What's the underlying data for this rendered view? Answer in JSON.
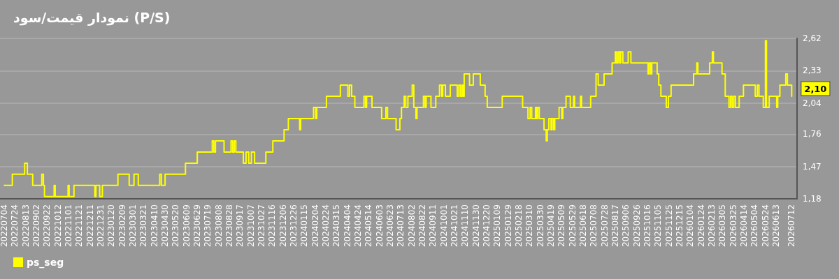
{
  "chart_data": {
    "type": "step",
    "title": "نمودار قیمت/سود (P/S)",
    "x": [
      "2022-07-04",
      "2022-07-19",
      "2022-08-11",
      "2022-08-16",
      "2022-08-26",
      "2022-09-12",
      "2022-09-15",
      "2022-09-17",
      "2022-10-05",
      "2022-10-07",
      "2022-10-31",
      "2022-11-02",
      "2022-11-11",
      "2022-12-20",
      "2022-12-22",
      "2022-12-29",
      "2023-01-03",
      "2023-02-01",
      "2023-02-22",
      "2023-03-03",
      "2023-03-11",
      "2023-04-20",
      "2023-04-23",
      "2023-04-30",
      "2023-06-07",
      "2023-06-29",
      "2023-07-27",
      "2023-07-30",
      "2023-08-02",
      "2023-08-18",
      "2023-08-31",
      "2023-09-03",
      "2023-09-06",
      "2023-09-09",
      "2023-09-23",
      "2023-09-28",
      "2023-10-03",
      "2023-10-08",
      "2023-10-14",
      "2023-11-04",
      "2023-11-17",
      "2023-12-08",
      "2023-12-16",
      "2024-01-06",
      "2024-01-08",
      "2024-02-01",
      "2024-02-05",
      "2024-02-07",
      "2024-02-25",
      "2024-03-22",
      "2024-04-05",
      "2024-04-08",
      "2024-04-12",
      "2024-04-18",
      "2024-05-05",
      "2024-05-08",
      "2024-05-10",
      "2024-05-20",
      "2024-06-07",
      "2024-06-15",
      "2024-06-18",
      "2024-07-04",
      "2024-07-11",
      "2024-07-14",
      "2024-07-19",
      "2024-07-22",
      "2024-07-26",
      "2024-08-03",
      "2024-08-06",
      "2024-08-10",
      "2024-08-12",
      "2024-08-24",
      "2024-08-27",
      "2024-08-29",
      "2024-09-07",
      "2024-09-16",
      "2024-09-23",
      "2024-09-27",
      "2024-09-29",
      "2024-10-04",
      "2024-10-13",
      "2024-10-26",
      "2024-10-29",
      "2024-11-01",
      "2024-11-04",
      "2024-11-06",
      "2024-11-08",
      "2024-11-18",
      "2024-11-25",
      "2024-12-08",
      "2024-12-17",
      "2024-12-21",
      "2025-01-18",
      "2025-02-25",
      "2025-03-07",
      "2025-03-11",
      "2025-03-14",
      "2025-03-21",
      "2025-03-23",
      "2025-03-25",
      "2025-03-28",
      "2025-04-06",
      "2025-04-10",
      "2025-04-12",
      "2025-04-15",
      "2025-04-19",
      "2025-04-21",
      "2025-04-24",
      "2025-04-26",
      "2025-05-04",
      "2025-05-09",
      "2025-05-11",
      "2025-05-17",
      "2025-05-25",
      "2025-05-31",
      "2025-06-02",
      "2025-06-13",
      "2025-06-15",
      "2025-07-02",
      "2025-07-12",
      "2025-07-16",
      "2025-07-27",
      "2025-08-11",
      "2025-08-17",
      "2025-08-19",
      "2025-08-22",
      "2025-08-25",
      "2025-08-27",
      "2025-08-31",
      "2025-09-10",
      "2025-09-15",
      "2025-10-17",
      "2025-10-19",
      "2025-10-22",
      "2025-10-24",
      "2025-11-03",
      "2025-11-06",
      "2025-11-10",
      "2025-11-20",
      "2025-11-24",
      "2025-11-29",
      "2026-01-10",
      "2026-01-16",
      "2026-01-18",
      "2026-02-09",
      "2026-02-14",
      "2026-02-16",
      "2026-03-04",
      "2026-03-10",
      "2026-03-17",
      "2026-03-20",
      "2026-03-23",
      "2026-03-26",
      "2026-03-29",
      "2026-04-05",
      "2026-04-13",
      "2026-05-05",
      "2026-05-09",
      "2026-05-12",
      "2026-05-20",
      "2026-05-24",
      "2026-05-26",
      "2026-05-31",
      "2026-06-14",
      "2026-06-16",
      "2026-06-20",
      "2026-07-01",
      "2026-07-04",
      "2026-07-12"
    ],
    "series": [
      {
        "name": "ps_seg",
        "color": "#ffff00",
        "values": [
          1.3,
          1.4,
          1.5,
          1.4,
          1.3,
          1.4,
          1.3,
          1.2,
          1.3,
          1.2,
          1.3,
          1.2,
          1.3,
          1.2,
          1.3,
          1.2,
          1.3,
          1.4,
          1.3,
          1.4,
          1.3,
          1.4,
          1.3,
          1.4,
          1.5,
          1.6,
          1.7,
          1.6,
          1.7,
          1.6,
          1.7,
          1.6,
          1.7,
          1.6,
          1.5,
          1.6,
          1.5,
          1.6,
          1.5,
          1.6,
          1.7,
          1.8,
          1.9,
          1.8,
          1.9,
          2.0,
          1.9,
          2.0,
          2.1,
          2.2,
          2.1,
          2.2,
          2.1,
          2.0,
          2.1,
          2.0,
          2.1,
          2.0,
          1.9,
          2.0,
          1.9,
          1.8,
          1.9,
          2.0,
          2.1,
          2.0,
          2.1,
          2.2,
          2.0,
          1.9,
          2.0,
          2.1,
          2.0,
          2.1,
          2.0,
          2.1,
          2.2,
          2.1,
          2.2,
          2.1,
          2.2,
          2.1,
          2.2,
          2.1,
          2.2,
          2.1,
          2.3,
          2.2,
          2.3,
          2.2,
          2.1,
          2.0,
          2.1,
          2.0,
          1.9,
          2.0,
          1.9,
          2.0,
          1.9,
          2.0,
          1.9,
          1.8,
          1.7,
          1.8,
          1.9,
          1.8,
          1.9,
          1.8,
          1.9,
          2.0,
          1.9,
          2.0,
          2.1,
          2.0,
          2.1,
          2.0,
          2.1,
          2.0,
          2.1,
          2.3,
          2.2,
          2.3,
          2.4,
          2.5,
          2.4,
          2.5,
          2.4,
          2.5,
          2.4,
          2.5,
          2.4,
          2.3,
          2.4,
          2.3,
          2.4,
          2.3,
          2.2,
          2.1,
          2.0,
          2.1,
          2.2,
          2.3,
          2.4,
          2.3,
          2.4,
          2.5,
          2.4,
          2.3,
          2.1,
          2.0,
          2.1,
          2.0,
          2.1,
          2.0,
          2.1,
          2.2,
          2.1,
          2.2,
          2.1,
          2.0,
          2.6,
          2.0,
          2.1,
          2.0,
          2.1,
          2.2,
          2.3,
          2.2,
          2.1
        ]
      }
    ],
    "annotations": [
      {
        "text": "2,10",
        "x": "2026-07-12",
        "y": 2.1
      }
    ],
    "xlim": [
      "2022-06-26",
      "2026-07-22"
    ],
    "xticks": [
      {
        "value": "2022-07-04",
        "label": "20220704"
      },
      {
        "value": "2022-07-24",
        "label": "20220724"
      },
      {
        "value": "2022-08-13",
        "label": "20220813"
      },
      {
        "value": "2022-09-02",
        "label": "20220902"
      },
      {
        "value": "2022-09-22",
        "label": "20220922"
      },
      {
        "value": "2022-10-12",
        "label": "20221012"
      },
      {
        "value": "2022-11-01",
        "label": "20221101"
      },
      {
        "value": "2022-11-21",
        "label": "20221121"
      },
      {
        "value": "2022-12-11",
        "label": "20221211"
      },
      {
        "value": "2022-12-31",
        "label": "20221231"
      },
      {
        "value": "2023-01-20",
        "label": "20230120"
      },
      {
        "value": "2023-02-09",
        "label": "20230209"
      },
      {
        "value": "2023-03-01",
        "label": "20230301"
      },
      {
        "value": "2023-03-21",
        "label": "20230321"
      },
      {
        "value": "2023-04-10",
        "label": "20230410"
      },
      {
        "value": "2023-04-30",
        "label": "20230430"
      },
      {
        "value": "2023-05-20",
        "label": "20230520"
      },
      {
        "value": "2023-06-09",
        "label": "20230609"
      },
      {
        "value": "2023-06-29",
        "label": "20230629"
      },
      {
        "value": "2023-07-19",
        "label": "20230719"
      },
      {
        "value": "2023-08-08",
        "label": "20230808"
      },
      {
        "value": "2023-08-28",
        "label": "20230828"
      },
      {
        "value": "2023-09-17",
        "label": "20230917"
      },
      {
        "value": "2023-10-07",
        "label": "20231007"
      },
      {
        "value": "2023-10-27",
        "label": "20231027"
      },
      {
        "value": "2023-11-16",
        "label": "20231116"
      },
      {
        "value": "2023-12-06",
        "label": "20231206"
      },
      {
        "value": "2023-12-26",
        "label": "20231226"
      },
      {
        "value": "2024-01-15",
        "label": "20240115"
      },
      {
        "value": "2024-02-04",
        "label": "20240204"
      },
      {
        "value": "2024-02-24",
        "label": "20240224"
      },
      {
        "value": "2024-03-15",
        "label": "20240315"
      },
      {
        "value": "2024-04-04",
        "label": "20240404"
      },
      {
        "value": "2024-04-24",
        "label": "20240424"
      },
      {
        "value": "2024-05-14",
        "label": "20240514"
      },
      {
        "value": "2024-06-03",
        "label": "20240603"
      },
      {
        "value": "2024-06-23",
        "label": "20240623"
      },
      {
        "value": "2024-07-13",
        "label": "20240713"
      },
      {
        "value": "2024-08-02",
        "label": "20240802"
      },
      {
        "value": "2024-08-22",
        "label": "20240822"
      },
      {
        "value": "2024-09-11",
        "label": "20240911"
      },
      {
        "value": "2024-10-01",
        "label": "20241001"
      },
      {
        "value": "2024-10-21",
        "label": "20241021"
      },
      {
        "value": "2024-11-10",
        "label": "20241110"
      },
      {
        "value": "2024-11-30",
        "label": "20241130"
      },
      {
        "value": "2024-12-20",
        "label": "20241220"
      },
      {
        "value": "2025-01-09",
        "label": "20250109"
      },
      {
        "value": "2025-01-29",
        "label": "20250129"
      },
      {
        "value": "2025-02-18",
        "label": "20250218"
      },
      {
        "value": "2025-03-10",
        "label": "20250310"
      },
      {
        "value": "2025-03-30",
        "label": "20250330"
      },
      {
        "value": "2025-04-19",
        "label": "20250419"
      },
      {
        "value": "2025-05-09",
        "label": "20250509"
      },
      {
        "value": "2025-05-29",
        "label": "20250529"
      },
      {
        "value": "2025-06-18",
        "label": "20250618"
      },
      {
        "value": "2025-07-08",
        "label": "20250708"
      },
      {
        "value": "2025-07-28",
        "label": "20250728"
      },
      {
        "value": "2025-08-17",
        "label": "20250817"
      },
      {
        "value": "2025-09-06",
        "label": "20250906"
      },
      {
        "value": "2025-09-26",
        "label": "20250926"
      },
      {
        "value": "2025-10-16",
        "label": "20251016"
      },
      {
        "value": "2025-11-05",
        "label": "20251105"
      },
      {
        "value": "2025-11-25",
        "label": "20251125"
      },
      {
        "value": "2025-12-15",
        "label": "20251215"
      },
      {
        "value": "2026-01-04",
        "label": "20260104"
      },
      {
        "value": "2026-01-24",
        "label": "20260124"
      },
      {
        "value": "2026-02-13",
        "label": "20260213"
      },
      {
        "value": "2026-03-05",
        "label": "20260305"
      },
      {
        "value": "2026-03-25",
        "label": "20260325"
      },
      {
        "value": "2026-04-14",
        "label": "20260414"
      },
      {
        "value": "2026-05-04",
        "label": "20260504"
      },
      {
        "value": "2026-05-24",
        "label": "20260524"
      },
      {
        "value": "2026-06-13",
        "label": "20260613"
      },
      {
        "value": "2026-07-12",
        "label": "20260712"
      }
    ],
    "ylim": [
      1.18,
      2.62
    ],
    "yticks": [
      {
        "value": 1.18,
        "label": "1,18"
      },
      {
        "value": 1.47,
        "label": "1,47"
      },
      {
        "value": 1.76,
        "label": "1,76"
      },
      {
        "value": 2.04,
        "label": "2,04"
      },
      {
        "value": 2.33,
        "label": "2,33"
      },
      {
        "value": 2.62,
        "label": "2,62"
      }
    ],
    "grid": "y",
    "legend": "bottom left",
    "marker": "none",
    "line_style": "solid"
  }
}
